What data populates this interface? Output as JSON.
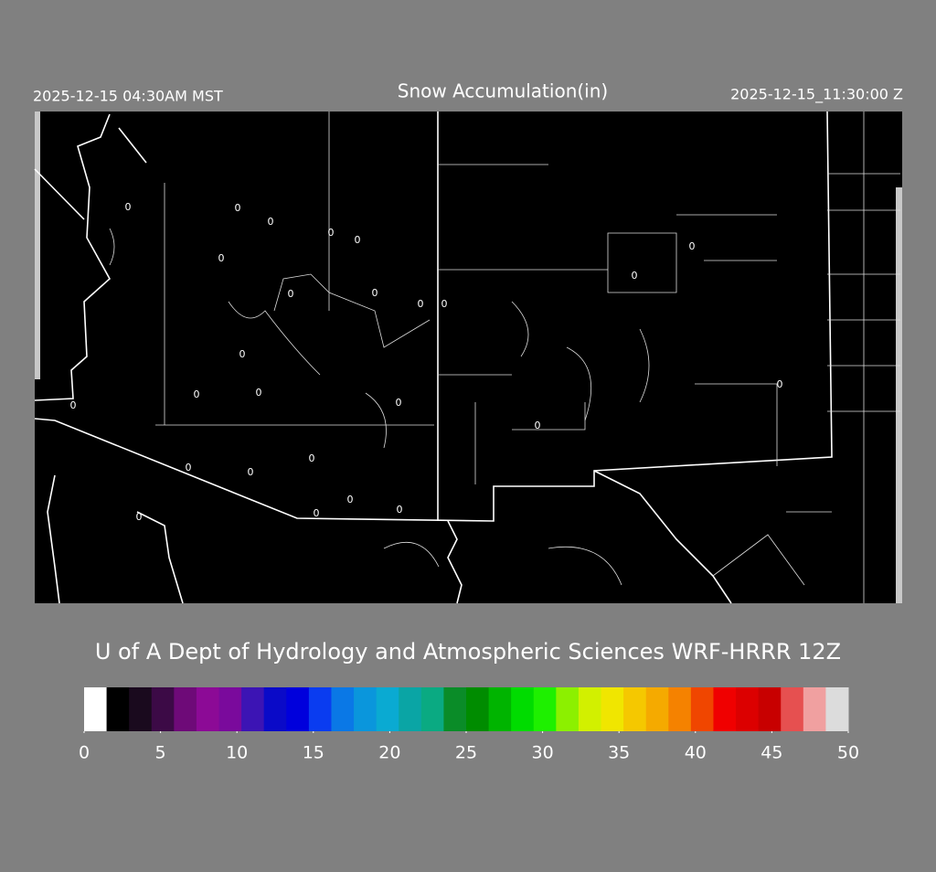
{
  "header": {
    "left": "2025-12-15 04:30AM MST",
    "title": "Snow Accumulation(in)",
    "right": "2025-12-15_11:30:00 Z"
  },
  "map": {
    "contour_labels": [
      "0",
      "0",
      "0",
      "0",
      "0",
      "0",
      "0",
      "0",
      "0",
      "0",
      "0",
      "0",
      "0",
      "0",
      "0",
      "0",
      "0",
      "0",
      "0",
      "0",
      "0",
      "0",
      "0",
      "0",
      "0",
      "0"
    ]
  },
  "footer": {
    "credit": "U of A Dept of Hydrology and Atmospheric Sciences WRF-HRRR 12Z"
  },
  "colorbar": {
    "range": [
      0,
      50
    ],
    "ticks": [
      0,
      5,
      10,
      15,
      20,
      25,
      30,
      35,
      40,
      45,
      50
    ],
    "colors": [
      "#ffffff",
      "#000000",
      "#1a0a1e",
      "#3c0a46",
      "#6e0a78",
      "#8c0a96",
      "#7a0a9c",
      "#3c14b4",
      "#0a0ac8",
      "#0000dc",
      "#0a3cf0",
      "#0a78e6",
      "#0a96dc",
      "#0aaad2",
      "#0aa5a5",
      "#0aaa82",
      "#0a8c28",
      "#008c00",
      "#00b400",
      "#00dc00",
      "#1ef000",
      "#8cf000",
      "#d2f000",
      "#f0e600",
      "#f5c800",
      "#f5aa00",
      "#f58200",
      "#f04600",
      "#f00000",
      "#dc0000",
      "#c80000",
      "#e65050",
      "#f0a0a0",
      "#dcdcdc"
    ]
  }
}
